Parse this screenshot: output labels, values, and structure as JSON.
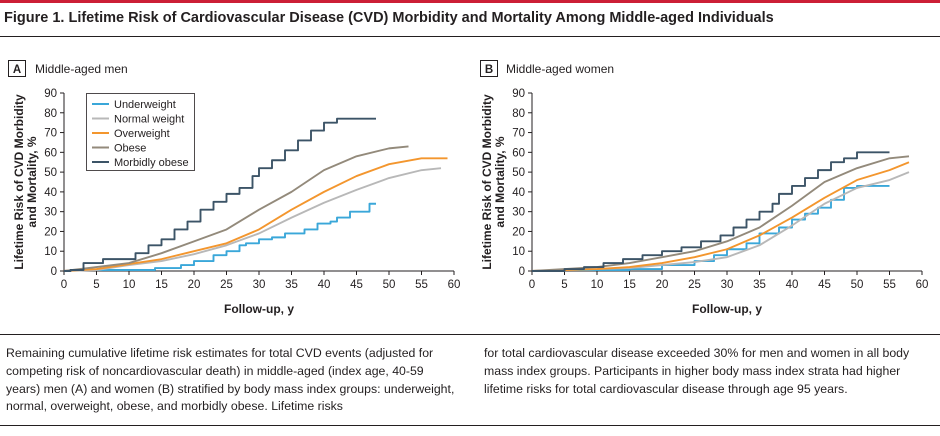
{
  "figure": {
    "title": "Figure 1. Lifetime Risk of Cardiovascular Disease (CVD) Morbidity and Mortality Among Middle-aged Individuals",
    "caption_left": "Remaining cumulative lifetime risk estimates for total CVD events (adjusted for competing risk of noncardiovascular death) in middle-aged (index age, 40-59 years) men (A) and women (B) stratified by body mass index groups: underweight, normal, overweight, obese, and morbidly obese. Lifetime risks",
    "caption_right": "for total cardiovascular disease exceeded 30% for men and women in all body mass index groups. Participants in higher body mass index strata had higher lifetime risks for total cardiovascular disease through age 95 years."
  },
  "colors": {
    "accent_rule": "#cc1f36",
    "Underweight": "#3aa7d9",
    "Normal weight": "#b8b8b8",
    "Overweight": "#f3962e",
    "Obese": "#938a7b",
    "Morbidly obese": "#3c5467"
  },
  "chart_data": [
    {
      "type": "line",
      "panel_letter": "A",
      "panel_title": "Middle-aged men",
      "xlabel": "Follow-up, y",
      "ylabel": "Lifetime Risk of CVD Morbidity and Mortality, %",
      "xlim": [
        0,
        60
      ],
      "ylim": [
        0,
        90
      ],
      "xticks": [
        0,
        5,
        10,
        15,
        20,
        25,
        30,
        35,
        40,
        45,
        50,
        55,
        60
      ],
      "yticks": [
        0,
        10,
        20,
        30,
        40,
        50,
        60,
        70,
        80,
        90
      ],
      "grid": false,
      "legend_position": "top-left",
      "series": [
        {
          "name": "Underweight",
          "step": true,
          "x": [
            0,
            1,
            14,
            18,
            20,
            23,
            25,
            27,
            28,
            30,
            32,
            34,
            37,
            39,
            41,
            42,
            44,
            47,
            48
          ],
          "y": [
            0,
            0.5,
            1.5,
            3,
            5,
            8,
            10,
            13,
            14,
            16,
            17,
            19,
            21,
            24,
            25,
            27,
            30,
            34,
            34
          ]
        },
        {
          "name": "Normal weight",
          "x": [
            0,
            5,
            10,
            15,
            20,
            25,
            30,
            35,
            40,
            45,
            50,
            55,
            58
          ],
          "y": [
            0,
            0.5,
            3,
            5,
            8.5,
            13,
            19,
            27,
            34.5,
            41,
            47,
            51,
            52
          ]
        },
        {
          "name": "Overweight",
          "x": [
            0,
            5,
            10,
            15,
            20,
            25,
            30,
            35,
            40,
            45,
            50,
            55,
            59
          ],
          "y": [
            0,
            1,
            3.5,
            6,
            10,
            14,
            21,
            31,
            40,
            48,
            54,
            57,
            57
          ]
        },
        {
          "name": "Obese",
          "x": [
            0,
            5,
            10,
            15,
            20,
            25,
            30,
            35,
            40,
            45,
            50,
            53
          ],
          "y": [
            0,
            2,
            4,
            9,
            15,
            21,
            31,
            40,
            51,
            58,
            62,
            63
          ]
        },
        {
          "name": "Morbidly obese",
          "step": true,
          "x": [
            0,
            1,
            3,
            6,
            11,
            13,
            15,
            17,
            19,
            21,
            23,
            25,
            27,
            29,
            30,
            32,
            34,
            36,
            38,
            40,
            42,
            48
          ],
          "y": [
            0,
            0.5,
            4,
            6,
            9,
            13,
            16,
            21,
            25,
            31,
            35,
            39,
            42,
            48,
            52,
            56,
            61,
            66,
            71,
            75,
            77,
            77
          ]
        }
      ]
    },
    {
      "type": "line",
      "panel_letter": "B",
      "panel_title": "Middle-aged women",
      "xlabel": "Follow-up, y",
      "ylabel": "Lifetime Risk of CVD Morbidity and Mortality, %",
      "xlim": [
        0,
        60
      ],
      "ylim": [
        0,
        90
      ],
      "xticks": [
        0,
        5,
        10,
        15,
        20,
        25,
        30,
        35,
        40,
        45,
        50,
        55,
        60
      ],
      "yticks": [
        0,
        10,
        20,
        30,
        40,
        50,
        60,
        70,
        80,
        90
      ],
      "grid": false,
      "series": [
        {
          "name": "Underweight",
          "step": true,
          "x": [
            0,
            5,
            15,
            20,
            25,
            28,
            30,
            33,
            35,
            38,
            40,
            42,
            44,
            46,
            48,
            50,
            55
          ],
          "y": [
            0,
            0.5,
            1,
            3,
            5,
            8,
            11,
            14,
            19,
            22,
            26,
            29,
            32,
            36,
            42,
            43,
            43
          ]
        },
        {
          "name": "Normal weight",
          "x": [
            0,
            5,
            10,
            15,
            20,
            25,
            30,
            35,
            40,
            45,
            50,
            55,
            58
          ],
          "y": [
            0,
            0.5,
            1,
            1.5,
            3,
            4.5,
            7,
            13,
            23,
            34,
            42,
            46,
            50
          ]
        },
        {
          "name": "Overweight",
          "x": [
            0,
            5,
            10,
            15,
            20,
            25,
            30,
            35,
            40,
            45,
            50,
            55,
            58
          ],
          "y": [
            0,
            0.5,
            1,
            2,
            4,
            7,
            11,
            18,
            27,
            37,
            46,
            51,
            55
          ]
        },
        {
          "name": "Obese",
          "x": [
            0,
            5,
            10,
            15,
            20,
            25,
            30,
            35,
            40,
            45,
            50,
            55,
            58
          ],
          "y": [
            0,
            1,
            2,
            4,
            7,
            10,
            15,
            22,
            33,
            45,
            52,
            57,
            58
          ]
        },
        {
          "name": "Morbidly obese",
          "step": true,
          "x": [
            0,
            5,
            8,
            11,
            14,
            17,
            20,
            23,
            26,
            29,
            31,
            33,
            35,
            37,
            38,
            40,
            42,
            44,
            46,
            48,
            50,
            55
          ],
          "y": [
            0,
            1,
            2,
            4,
            6,
            8,
            10,
            12,
            15,
            18,
            22,
            26,
            30,
            34,
            39,
            43,
            47,
            51,
            55,
            57,
            60,
            60
          ]
        }
      ]
    }
  ]
}
